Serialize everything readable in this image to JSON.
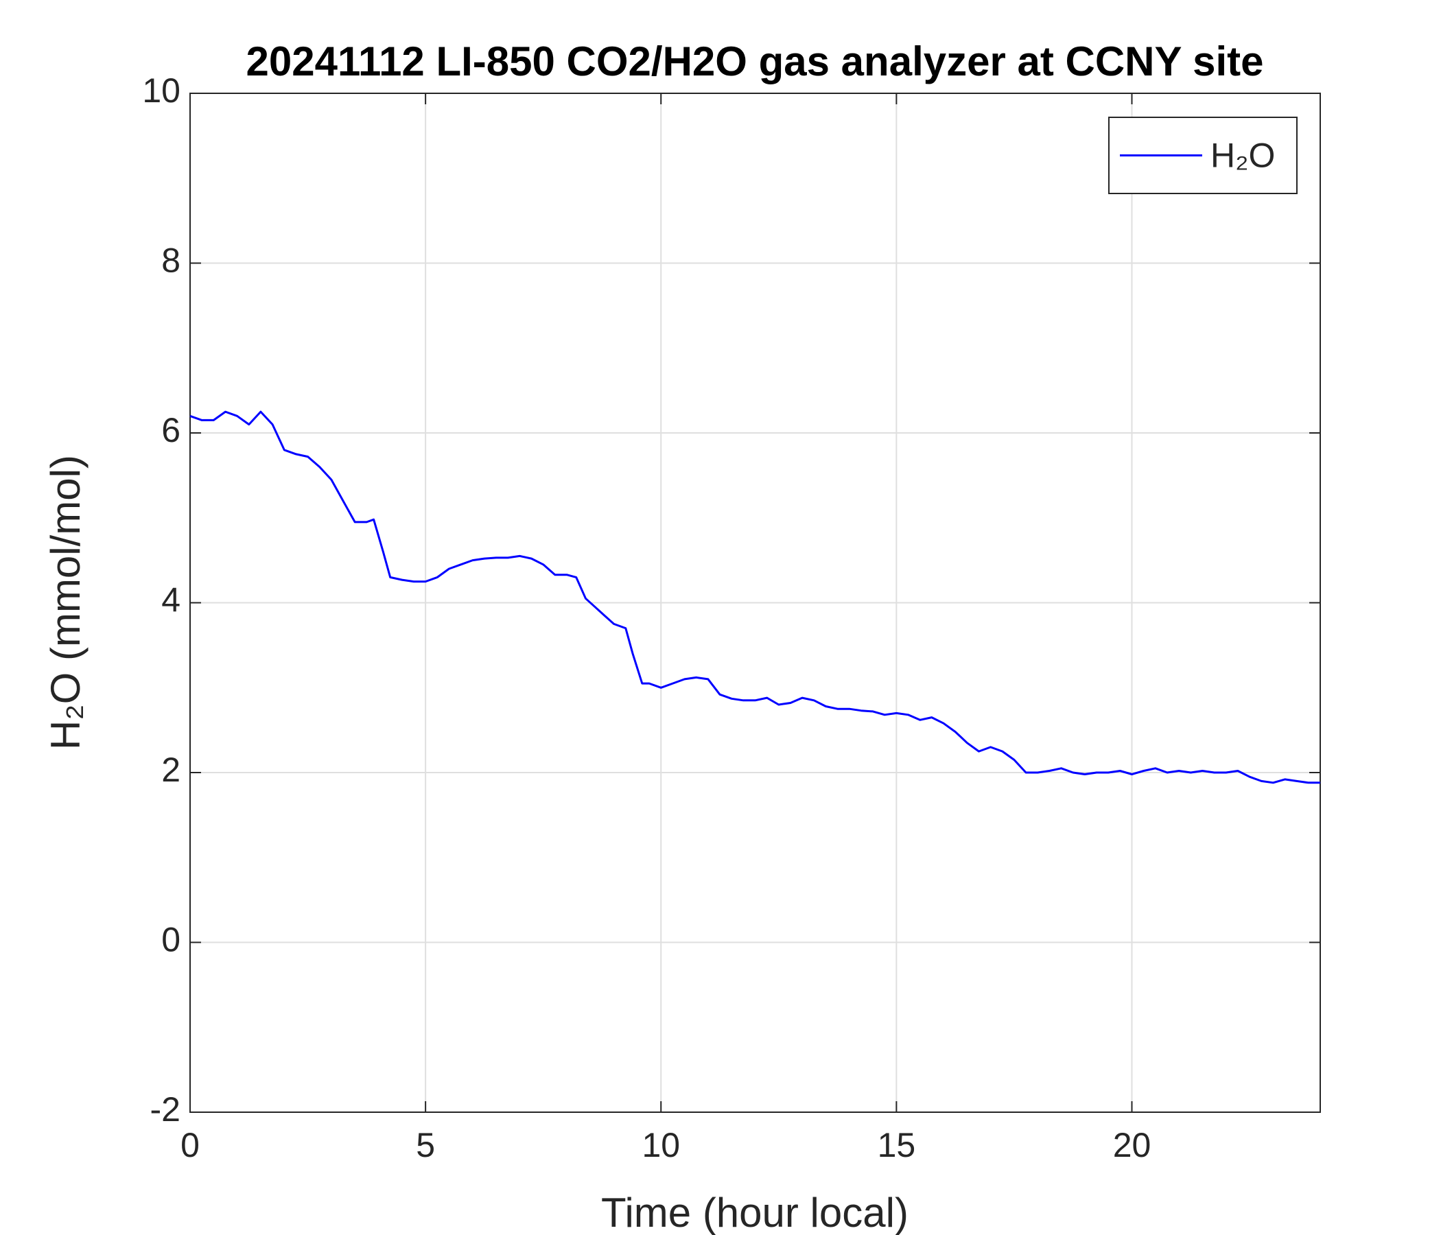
{
  "chart_data": {
    "type": "line",
    "title": "20241112 LI-850 CO2/H2O gas analyzer at CCNY site",
    "x_label": "Time (hour local)",
    "y_label": "H₂O (mmol/mol)",
    "xlim": [
      0,
      24
    ],
    "xticks": [
      0,
      5,
      10,
      15,
      20
    ],
    "ylim": [
      -2,
      10
    ],
    "yticks": [
      -2,
      0,
      2,
      4,
      6,
      8,
      10
    ],
    "grid": true,
    "legend_position": "upper right",
    "x": [
      0,
      0.25,
      0.5,
      0.75,
      1,
      1.25,
      1.5,
      1.75,
      2,
      2.25,
      2.5,
      2.75,
      3,
      3.25,
      3.5,
      3.75,
      3.9,
      4.1,
      4.25,
      4.5,
      4.75,
      5,
      5.25,
      5.5,
      5.75,
      6,
      6.25,
      6.5,
      6.75,
      7,
      7.25,
      7.5,
      7.75,
      8,
      8.2,
      8.4,
      8.6,
      8.8,
      9,
      9.25,
      9.4,
      9.6,
      9.75,
      10,
      10.25,
      10.5,
      10.75,
      11,
      11.25,
      11.5,
      11.75,
      12,
      12.25,
      12.5,
      12.75,
      13,
      13.25,
      13.5,
      13.75,
      14,
      14.25,
      14.5,
      14.75,
      15,
      15.25,
      15.5,
      15.75,
      16,
      16.25,
      16.5,
      16.75,
      17,
      17.25,
      17.5,
      17.75,
      18,
      18.25,
      18.5,
      18.75,
      19,
      19.25,
      19.5,
      19.75,
      20,
      20.25,
      20.5,
      20.75,
      21,
      21.25,
      21.5,
      21.75,
      22,
      22.25,
      22.5,
      22.75,
      23,
      23.25,
      23.5,
      23.75,
      24
    ],
    "series": [
      {
        "name": "H₂O",
        "color": "#0000ff",
        "values": [
          6.2,
          6.15,
          6.15,
          6.25,
          6.2,
          6.1,
          6.25,
          6.1,
          5.8,
          5.75,
          5.72,
          5.6,
          5.45,
          5.2,
          4.95,
          4.95,
          4.98,
          4.6,
          4.3,
          4.27,
          4.25,
          4.25,
          4.3,
          4.4,
          4.45,
          4.5,
          4.52,
          4.53,
          4.53,
          4.55,
          4.52,
          4.45,
          4.33,
          4.33,
          4.3,
          4.05,
          3.95,
          3.85,
          3.75,
          3.7,
          3.4,
          3.05,
          3.05,
          3.0,
          3.05,
          3.1,
          3.12,
          3.1,
          2.92,
          2.87,
          2.85,
          2.85,
          2.88,
          2.8,
          2.82,
          2.88,
          2.85,
          2.78,
          2.75,
          2.75,
          2.73,
          2.72,
          2.68,
          2.7,
          2.68,
          2.62,
          2.65,
          2.58,
          2.48,
          2.35,
          2.25,
          2.3,
          2.25,
          2.15,
          2.0,
          2.0,
          2.02,
          2.05,
          2.0,
          1.98,
          2.0,
          2.0,
          2.02,
          1.98,
          2.02,
          2.05,
          2.0,
          2.02,
          2.0,
          2.02,
          2.0,
          2.0,
          2.02,
          1.95,
          1.9,
          1.88,
          1.92,
          1.9,
          1.88,
          1.88
        ]
      }
    ]
  }
}
